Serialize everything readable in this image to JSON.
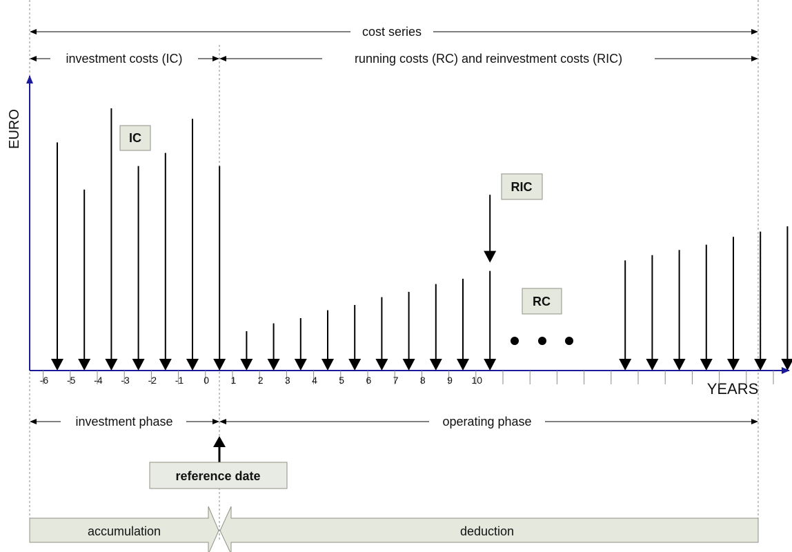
{
  "spans": {
    "cost_series": "cost series",
    "investment_costs": "investment costs (IC)",
    "running_costs": "running costs (RC) and reinvestment costs (RIC)",
    "investment_phase": "investment phase",
    "operating_phase": "operating phase"
  },
  "axes": {
    "y_label": "EURO",
    "x_label": "YEARS",
    "ticks": [
      "-6",
      "-5",
      "-4",
      "-3",
      "-2",
      "-1",
      "0",
      "1",
      "2",
      "3",
      "4",
      "5",
      "6",
      "7",
      "8",
      "9",
      "10"
    ]
  },
  "labels": {
    "ic": "IC",
    "ric": "RIC",
    "rc": "RC",
    "reference_date": "reference date",
    "accumulation": "accumulation",
    "deduction": "deduction"
  },
  "series": {
    "investment_costs": [
      {
        "year": -6,
        "value": 0.87
      },
      {
        "year": -5,
        "value": 0.69
      },
      {
        "year": -4,
        "value": 1.0
      },
      {
        "year": -3,
        "value": 0.78
      },
      {
        "year": -2,
        "value": 0.83
      },
      {
        "year": -1,
        "value": 0.96
      },
      {
        "year": 0,
        "value": 0.78
      }
    ],
    "running_costs": [
      {
        "year": 1,
        "value": 0.15
      },
      {
        "year": 2,
        "value": 0.18
      },
      {
        "year": 3,
        "value": 0.2
      },
      {
        "year": 4,
        "value": 0.23
      },
      {
        "year": 5,
        "value": 0.25
      },
      {
        "year": 6,
        "value": 0.28
      },
      {
        "year": 7,
        "value": 0.3
      },
      {
        "year": 8,
        "value": 0.33
      },
      {
        "year": 9,
        "value": 0.35
      },
      {
        "year": 10,
        "value": 0.38
      }
    ],
    "later_running_costs": [
      0.42,
      0.44,
      0.46,
      0.48,
      0.51,
      0.53,
      0.55
    ],
    "ric_arrow_value": 0.18
  },
  "colors": {
    "axis": "#1a1a9a",
    "box_fill": "#e4e8dd",
    "box_stroke": "#8f9185"
  }
}
